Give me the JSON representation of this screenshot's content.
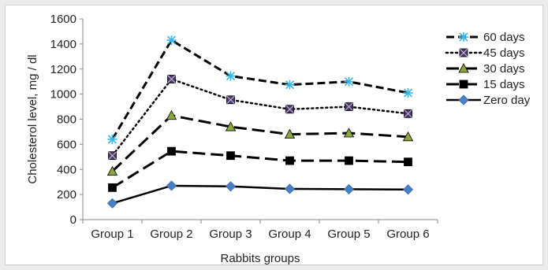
{
  "chart_data": {
    "type": "line",
    "xlabel": "Rabbits groups",
    "ylabel": "Cholesterol level, mg / dl",
    "ylim": [
      0,
      1600
    ],
    "yticks": [
      0,
      200,
      400,
      600,
      800,
      1000,
      1200,
      1400,
      1600
    ],
    "categories": [
      "Group 1",
      "Group 2",
      "Group 3",
      "Group 4",
      "Group 5",
      "Group 6"
    ],
    "grid": false,
    "legend_position": "right",
    "series": [
      {
        "name": "60 days",
        "values": [
          640,
          1430,
          1145,
          1075,
          1100,
          1010
        ],
        "line_style": "dashed",
        "marker": "asterisk",
        "marker_color": "#39b6e8",
        "line_color": "#000000"
      },
      {
        "name": "45 days",
        "values": [
          510,
          1120,
          955,
          880,
          900,
          845
        ],
        "line_style": "dotted",
        "marker": "square",
        "marker_color": "#4b3568",
        "line_color": "#000000"
      },
      {
        "name": "30 days",
        "values": [
          385,
          830,
          740,
          680,
          690,
          660
        ],
        "line_style": "long-dash",
        "marker": "triangle",
        "marker_color": "#8aa63c",
        "line_color": "#000000"
      },
      {
        "name": "15 days",
        "values": [
          255,
          545,
          510,
          470,
          470,
          460
        ],
        "line_style": "long-dash",
        "marker": "square",
        "marker_color": "#000000",
        "line_color": "#000000"
      },
      {
        "name": "Zero day",
        "values": [
          130,
          270,
          265,
          245,
          242,
          240
        ],
        "line_style": "solid",
        "marker": "diamond",
        "marker_color": "#4a7fc4",
        "line_color": "#000000"
      }
    ]
  }
}
